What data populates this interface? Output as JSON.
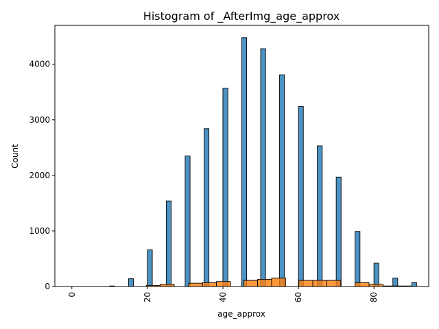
{
  "chart_data": {
    "type": "bar",
    "title": "Histogram of _AfterImg_age_approx",
    "xlabel": "age_approx",
    "ylabel": "Count",
    "xlim": [
      -4.5,
      94.5
    ],
    "ylim": [
      0,
      4700
    ],
    "xticks": [
      0,
      20,
      40,
      60,
      80
    ],
    "yticks": [
      0,
      1000,
      2000,
      3000,
      4000
    ],
    "grid": false,
    "legend": "none",
    "colors": {
      "series1": "#1f77b4",
      "series2": "#ff7f0e"
    },
    "series": [
      {
        "bins": [
          {
            "x0": 10.0,
            "x1": 11.3,
            "value": 10
          },
          {
            "x0": 15.0,
            "x1": 16.3,
            "value": 140
          },
          {
            "x0": 20.0,
            "x1": 21.3,
            "value": 660
          },
          {
            "x0": 25.0,
            "x1": 26.3,
            "value": 1540
          },
          {
            "x0": 30.0,
            "x1": 31.3,
            "value": 2350
          },
          {
            "x0": 35.0,
            "x1": 36.3,
            "value": 2840
          },
          {
            "x0": 40.0,
            "x1": 41.3,
            "value": 3570
          },
          {
            "x0": 45.0,
            "x1": 46.3,
            "value": 4480
          },
          {
            "x0": 50.0,
            "x1": 51.3,
            "value": 4280
          },
          {
            "x0": 55.0,
            "x1": 56.3,
            "value": 3810
          },
          {
            "x0": 60.0,
            "x1": 61.3,
            "value": 3240
          },
          {
            "x0": 65.0,
            "x1": 66.3,
            "value": 2530
          },
          {
            "x0": 70.0,
            "x1": 71.3,
            "value": 1970
          },
          {
            "x0": 75.0,
            "x1": 76.3,
            "value": 990
          },
          {
            "x0": 80.0,
            "x1": 81.3,
            "value": 420
          },
          {
            "x0": 85.0,
            "x1": 86.3,
            "value": 150
          },
          {
            "x0": 90.0,
            "x1": 91.3,
            "value": 70
          }
        ]
      },
      {
        "bins": [
          {
            "x0": 19.7,
            "x1": 23.4,
            "value": 20
          },
          {
            "x0": 23.4,
            "x1": 27.1,
            "value": 40
          },
          {
            "x0": 30.9,
            "x1": 34.6,
            "value": 60
          },
          {
            "x0": 34.6,
            "x1": 38.3,
            "value": 70
          },
          {
            "x0": 38.3,
            "x1": 42.0,
            "value": 90
          },
          {
            "x0": 45.5,
            "x1": 49.2,
            "value": 110
          },
          {
            "x0": 49.2,
            "x1": 52.9,
            "value": 130
          },
          {
            "x0": 52.9,
            "x1": 56.6,
            "value": 150
          },
          {
            "x0": 60.1,
            "x1": 63.8,
            "value": 110
          },
          {
            "x0": 63.8,
            "x1": 67.5,
            "value": 110
          },
          {
            "x0": 67.5,
            "x1": 71.2,
            "value": 110
          },
          {
            "x0": 75.0,
            "x1": 78.7,
            "value": 70
          },
          {
            "x0": 78.7,
            "x1": 82.4,
            "value": 40
          },
          {
            "x0": 82.4,
            "x1": 86.1,
            "value": 10
          },
          {
            "x0": 86.1,
            "x1": 89.8,
            "value": 10
          }
        ]
      }
    ]
  }
}
